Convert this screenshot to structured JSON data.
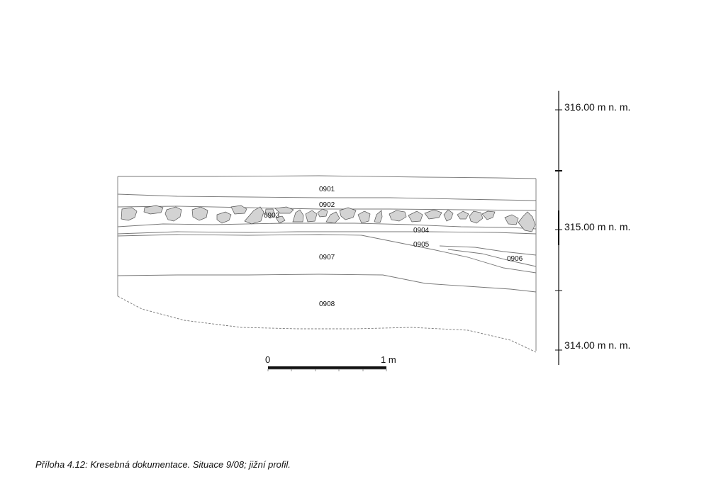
{
  "layers": {
    "l0901": "0901",
    "l0902": "0902",
    "l0903": "0903",
    "l0904": "0904",
    "l0905": "0905",
    "l0906": "0906",
    "l0907": "0907",
    "l0908": "0908"
  },
  "elevations": {
    "top": "316.00 m n. m.",
    "mid": "315.00 m n. m.",
    "bottom": "314.00 m n. m."
  },
  "scale_bar": {
    "start": "0",
    "end": "1 m"
  },
  "caption": "Příloha 4.12: Kresebná dokumentace. Situace 9/08; jižní profil."
}
